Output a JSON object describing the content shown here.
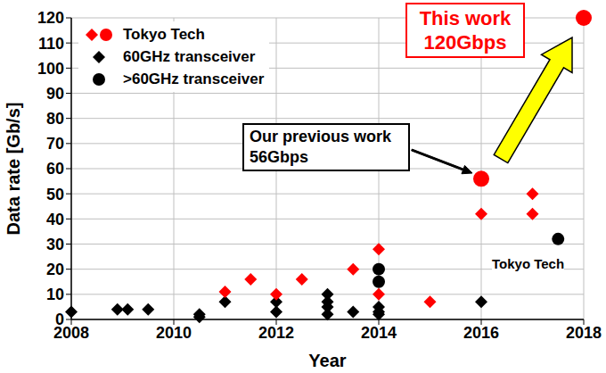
{
  "chart_data": {
    "type": "scatter",
    "x_label": "Year",
    "y_label": "Data rate [Gb/s]",
    "xlim": [
      2008,
      2018
    ],
    "xticks": [
      2008,
      2010,
      2012,
      2014,
      2016,
      2018
    ],
    "ylim": [
      0,
      120
    ],
    "yticks": [
      0,
      10,
      20,
      30,
      40,
      50,
      60,
      70,
      80,
      90,
      100,
      110,
      120
    ],
    "grid": true,
    "legend": "upper left",
    "series": [
      {
        "name": "Tokyo Tech",
        "color": "#ff0000",
        "marker": "diamond",
        "x": [
          2011,
          2011.5,
          2012,
          2012.5,
          2013.5,
          2014,
          2014,
          2015,
          2016,
          2017,
          2017
        ],
        "values": [
          11,
          16,
          10,
          16,
          20,
          28,
          10,
          7,
          42,
          50,
          42
        ]
      },
      {
        "name": "Tokyo Tech",
        "color": "#ff0000",
        "marker": "circle",
        "x": [
          2016,
          2018
        ],
        "values": [
          56,
          120
        ]
      },
      {
        "name": "60GHz transceiver",
        "color": "#000000",
        "marker": "diamond",
        "x": [
          2008,
          2008.9,
          2009.1,
          2009.5,
          2010.5,
          2010.5,
          2011,
          2012,
          2012,
          2013,
          2013,
          2013,
          2013,
          2013.5,
          2014,
          2014,
          2014,
          2016
        ],
        "values": [
          3,
          4,
          4,
          4,
          1,
          2,
          7,
          3,
          7,
          2,
          5,
          7,
          10,
          3,
          2,
          5,
          3,
          7
        ]
      },
      {
        "name": ">60GHz transceiver",
        "color": "#000000",
        "marker": "circle",
        "x": [
          2014,
          2014,
          2017.5
        ],
        "values": [
          20,
          15,
          32
        ]
      }
    ],
    "annotations": [
      [
        "This work",
        "120Gbps"
      ],
      [
        "Our previous work",
        "56Gbps"
      ],
      [
        "Tokyo Tech"
      ]
    ]
  }
}
